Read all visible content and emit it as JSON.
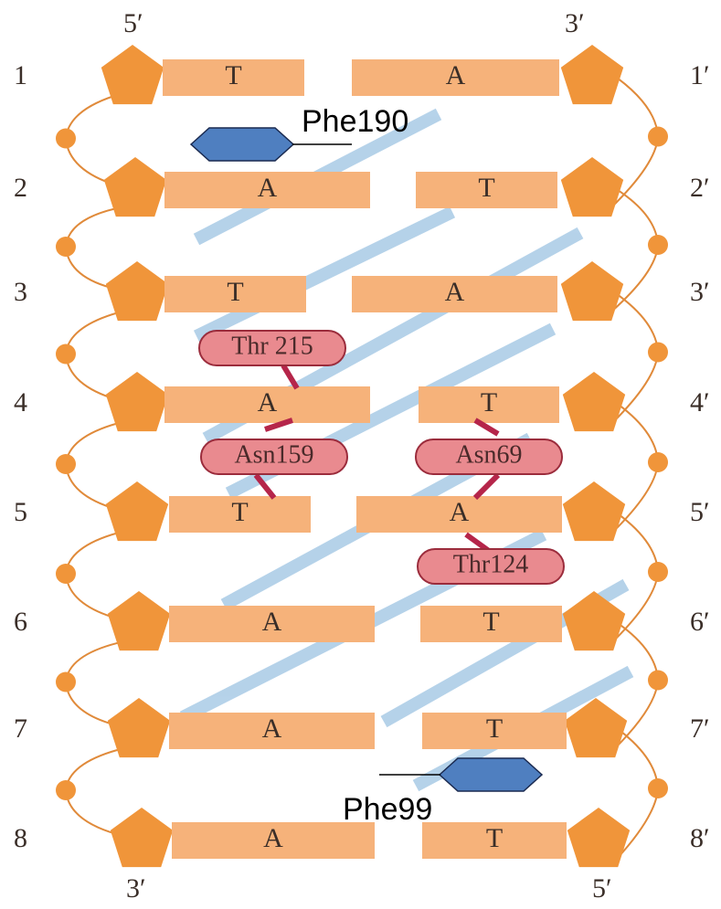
{
  "strand_ends": {
    "top_left": "5′",
    "top_right": "3′",
    "bottom_left": "3′",
    "bottom_right": "5′"
  },
  "rows": [
    {
      "left_label": "1",
      "left_base": "T",
      "right_base": "A",
      "right_label": "1′"
    },
    {
      "left_label": "2",
      "left_base": "A",
      "right_base": "T",
      "right_label": "2′"
    },
    {
      "left_label": "3",
      "left_base": "T",
      "right_base": "A",
      "right_label": "3′"
    },
    {
      "left_label": "4",
      "left_base": "A",
      "right_base": "T",
      "right_label": "4′"
    },
    {
      "left_label": "5",
      "left_base": "T",
      "right_base": "A",
      "right_label": "5′"
    },
    {
      "left_label": "6",
      "left_base": "A",
      "right_base": "T",
      "right_label": "6′"
    },
    {
      "left_label": "7",
      "left_base": "A",
      "right_base": "T",
      "right_label": "7′"
    },
    {
      "left_label": "8",
      "left_base": "A",
      "right_base": "T",
      "right_label": "8′"
    }
  ],
  "residues": {
    "thr215": "Thr 215",
    "asn159": "Asn159",
    "asn69": "Asn69",
    "thr124": "Thr124",
    "phe190": "Phe190",
    "phe99": "Phe99"
  }
}
